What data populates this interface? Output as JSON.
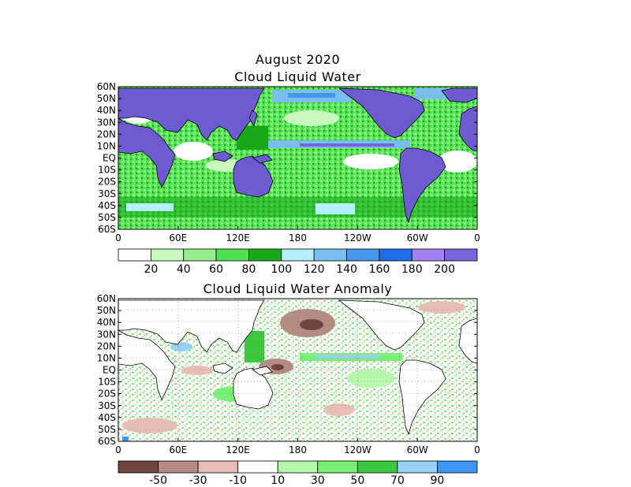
{
  "titles": {
    "month": "August 2020",
    "top": "Cloud Liquid Water",
    "bottom": "Cloud Liquid Water Anomaly"
  },
  "lat_labels": [
    "60N",
    "50N",
    "40N",
    "30N",
    "20N",
    "10N",
    "EQ",
    "10S",
    "20S",
    "30S",
    "40S",
    "50S",
    "60S"
  ],
  "lon_labels": [
    "0",
    "60E",
    "120E",
    "180",
    "120W",
    "60W",
    "0"
  ],
  "top_colorbar": {
    "colors": [
      "#ffffff",
      "#c8f8c0",
      "#96ef8c",
      "#50e050",
      "#18a818",
      "#b4f0fa",
      "#78bef0",
      "#4696ee",
      "#1e6ee6",
      "#a082f0",
      "#7864dc"
    ],
    "labels": [
      "20",
      "40",
      "60",
      "80",
      "100",
      "120",
      "140",
      "160",
      "180",
      "200"
    ]
  },
  "bottom_colorbar": {
    "colors": [
      "#6e463c",
      "#b48c82",
      "#e6beb4",
      "#ffffff",
      "#b4faaa",
      "#78f073",
      "#3cc83c",
      "#96d2fa",
      "#3c96f5"
    ],
    "labels": [
      "-50",
      "-30",
      "-10",
      "10",
      "30",
      "50",
      "70",
      "90"
    ]
  },
  "chart_data": [
    {
      "type": "heatmap",
      "title": "Cloud Liquid Water",
      "x_ticks": [
        "0",
        "60E",
        "120E",
        "180",
        "120W",
        "60W",
        "0"
      ],
      "y_ticks": [
        "60N",
        "50N",
        "40N",
        "30N",
        "20N",
        "10N",
        "EQ",
        "10S",
        "20S",
        "30S",
        "40S",
        "50S",
        "60S"
      ],
      "legend_levels": [
        20,
        40,
        60,
        80,
        100,
        120,
        140,
        160,
        180,
        200
      ],
      "land_color": "#6c5cd0",
      "ocean_typical": "#50e050",
      "itcz_band_lat": "5N-10N"
    },
    {
      "type": "heatmap",
      "title": "Cloud Liquid Water Anomaly",
      "x_ticks": [
        "0",
        "60E",
        "120E",
        "180",
        "120W",
        "60W",
        "0"
      ],
      "y_ticks": [
        "60N",
        "50N",
        "40N",
        "30N",
        "20N",
        "10N",
        "EQ",
        "10S",
        "20S",
        "30S",
        "40S",
        "50S",
        "60S"
      ],
      "legend_levels": [
        -50,
        -30,
        -10,
        10,
        30,
        50,
        70,
        90
      ],
      "land_color": "#ffffff"
    }
  ]
}
